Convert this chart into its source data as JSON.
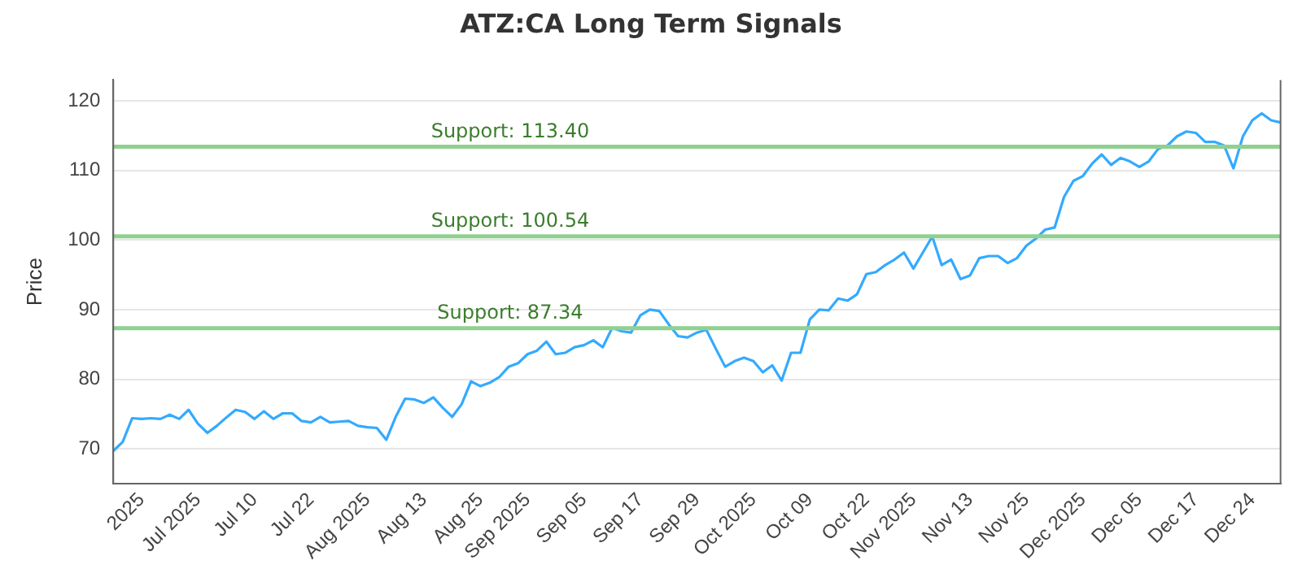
{
  "chart_data": {
    "type": "line",
    "title": "ATZ:CA Long Term Signals",
    "ylabel": "Price",
    "categories": [
      null,
      null,
      null,
      "2025",
      null,
      null,
      null,
      null,
      null,
      "Jul 2025",
      null,
      null,
      null,
      null,
      null,
      "Jul 10",
      null,
      null,
      null,
      null,
      null,
      "Jul 22",
      null,
      null,
      null,
      null,
      null,
      "Aug 2025",
      null,
      null,
      null,
      null,
      null,
      "Aug 13",
      null,
      null,
      null,
      null,
      null,
      "Aug 25",
      null,
      null,
      null,
      null,
      "Sep 2025",
      null,
      null,
      null,
      null,
      null,
      "Sep 05",
      null,
      null,
      null,
      null,
      null,
      "Sep 17",
      null,
      null,
      null,
      null,
      null,
      "Sep 29",
      null,
      null,
      null,
      null,
      null,
      "Oct 2025",
      null,
      null,
      null,
      null,
      null,
      "Oct 09",
      null,
      null,
      null,
      null,
      null,
      "Oct 22",
      null,
      null,
      null,
      null,
      "Nov 2025",
      null,
      null,
      null,
      null,
      null,
      "Nov 13",
      null,
      null,
      null,
      null,
      null,
      "Nov 25",
      null,
      null,
      null,
      null,
      null,
      "Dec 2025",
      null,
      null,
      null,
      null,
      null,
      "Dec 05",
      null,
      null,
      null,
      null,
      null,
      "Dec 17",
      null,
      null,
      null,
      null,
      null,
      "Dec 24",
      null,
      null,
      null
    ],
    "series": [
      {
        "color": "#33aaff",
        "values": [
          69.7,
          71,
          74.4,
          74.3,
          74.4,
          74.3,
          74.9,
          74.3,
          75.6,
          73.6,
          72.3,
          73.3,
          74.5,
          75.6,
          75.3,
          74.3,
          75.4,
          74.3,
          75.1,
          75.1,
          74,
          73.8,
          74.6,
          73.8,
          73.9,
          74,
          73.3,
          73.1,
          73,
          71.3,
          74.6,
          77.2,
          77.1,
          76.6,
          77.4,
          75.9,
          74.6,
          76.4,
          79.7,
          79,
          79.5,
          80.3,
          81.8,
          82.3,
          83.6,
          84.1,
          85.4,
          83.6,
          83.8,
          84.6,
          84.9,
          85.6,
          84.6,
          87.4,
          86.9,
          86.7,
          89.2,
          90,
          89.8,
          87.9,
          86.2,
          86,
          86.7,
          87.1,
          84.4,
          81.8,
          82.6,
          83.1,
          82.6,
          81,
          82,
          79.8,
          83.8,
          83.8,
          88.6,
          90,
          89.9,
          91.6,
          91.3,
          92.2,
          95.1,
          95.4,
          96.4,
          97.2,
          98.2,
          95.9,
          98.2,
          100.5,
          96.4,
          97.2,
          94.4,
          94.9,
          97.4,
          97.7,
          97.7,
          96.7,
          97.4,
          99.2,
          100.2,
          101.5,
          101.8,
          106.2,
          108.5,
          109.2,
          111,
          112.3,
          110.8,
          111.8,
          111.3,
          110.5,
          111.3,
          113.1,
          113.6,
          114.9,
          115.6,
          115.4,
          114.1,
          114.1,
          113.6,
          110.3,
          114.9,
          117.2,
          118.2,
          117.2,
          116.9
        ]
      }
    ],
    "ylim": [
      65,
      123
    ],
    "yticks": [
      70,
      80,
      90,
      100,
      110,
      120
    ],
    "grid": "y",
    "marker": "none",
    "line_style": "solid",
    "ref_lines": [
      {
        "axis": "y",
        "value": 113.4,
        "label": "Support: 113.40",
        "color": "#90d090"
      },
      {
        "axis": "y",
        "value": 100.54,
        "label": "Support: 100.54",
        "color": "#90d090"
      },
      {
        "axis": "y",
        "value": 87.34,
        "label": "Support: 87.34",
        "color": "#90d090"
      }
    ]
  }
}
